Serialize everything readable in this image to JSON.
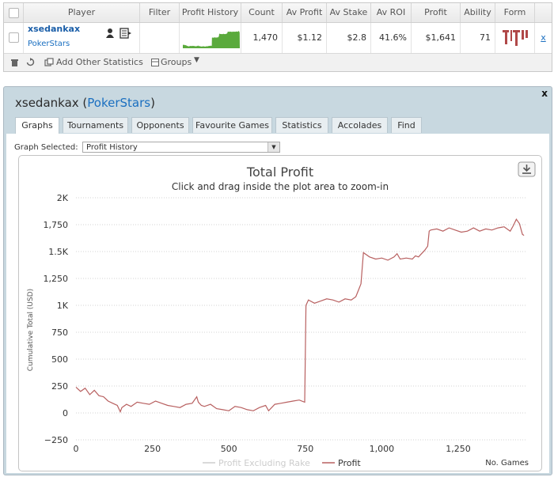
{
  "table": {
    "headers": [
      "Player",
      "Filter",
      "Profit History",
      "Count",
      "Av Profit",
      "Av Stake",
      "Av ROI",
      "Profit",
      "Ability",
      "Form"
    ],
    "row": {
      "player_name": "xsedankax",
      "site": "PokerStars",
      "count": "1,470",
      "av_profit": "$1.12",
      "av_stake": "$2.8",
      "av_roi": "41.6%",
      "profit": "$1,641",
      "ability": "71",
      "remove": "x"
    },
    "footer": {
      "add_stats_label": "Add Other Statistics",
      "groups_label": "Groups"
    }
  },
  "panel": {
    "player": "xsedankax",
    "site": "PokerStars",
    "close": "x",
    "tabs": [
      "Graphs",
      "Tournaments",
      "Opponents",
      "Favourite Games",
      "Statistics",
      "Accolades",
      "Find"
    ],
    "active_tab": "Graphs",
    "graph_selected_label": "Graph Selected:",
    "graph_selected_value": "Profit History"
  },
  "colors": {
    "profit_line": "#b86060",
    "rake_line": "#cccccc",
    "sparkline": "#5aaa3c",
    "link": "#1a6fc0"
  },
  "chart_data": {
    "type": "line",
    "title": "Total Profit",
    "subtitle": "Click and drag inside the plot area to zoom-in",
    "xlabel": "No. Games",
    "ylabel": "Cumulative Total (USD)",
    "xlim": [
      0,
      1470
    ],
    "ylim": [
      -250,
      2000
    ],
    "y_ticks": [
      -250,
      0,
      250,
      500,
      750,
      1000,
      1250,
      1500,
      1750,
      2000
    ],
    "y_tick_labels": [
      "−250",
      "0",
      "250",
      "500",
      "750",
      "1K",
      "1,250",
      "1.5K",
      "1,750",
      "2K"
    ],
    "x_ticks": [
      0,
      250,
      500,
      750,
      1000,
      1250
    ],
    "x_tick_labels": [
      "0",
      "250",
      "500",
      "750",
      "1,000",
      "1,250"
    ],
    "legend": [
      "Profit Excluding Rake",
      "Profit"
    ],
    "series": [
      {
        "name": "Profit",
        "x": [
          0,
          15,
          30,
          45,
          60,
          75,
          90,
          105,
          120,
          135,
          145,
          150,
          165,
          180,
          200,
          220,
          240,
          260,
          280,
          300,
          320,
          340,
          360,
          380,
          395,
          400,
          410,
          420,
          440,
          460,
          480,
          500,
          520,
          540,
          560,
          580,
          600,
          620,
          630,
          650,
          670,
          690,
          710,
          730,
          748,
          752,
          760,
          780,
          800,
          820,
          840,
          860,
          880,
          900,
          915,
          925,
          932,
          940,
          960,
          980,
          1000,
          1020,
          1040,
          1050,
          1060,
          1080,
          1100,
          1110,
          1120,
          1130,
          1140,
          1150,
          1155,
          1160,
          1180,
          1200,
          1220,
          1240,
          1260,
          1280,
          1300,
          1320,
          1340,
          1360,
          1380,
          1400,
          1420,
          1430,
          1440,
          1450,
          1460,
          1465
        ],
        "y": [
          240,
          200,
          230,
          170,
          210,
          160,
          150,
          110,
          90,
          70,
          10,
          50,
          80,
          60,
          100,
          90,
          80,
          110,
          90,
          70,
          60,
          50,
          80,
          90,
          150,
          100,
          70,
          60,
          80,
          40,
          30,
          20,
          60,
          50,
          30,
          20,
          50,
          70,
          20,
          80,
          90,
          100,
          110,
          120,
          100,
          1000,
          1050,
          1020,
          1040,
          1060,
          1050,
          1030,
          1060,
          1050,
          1080,
          1150,
          1200,
          1490,
          1450,
          1430,
          1440,
          1420,
          1450,
          1480,
          1430,
          1440,
          1430,
          1460,
          1450,
          1480,
          1510,
          1550,
          1690,
          1700,
          1710,
          1690,
          1720,
          1700,
          1680,
          1690,
          1720,
          1690,
          1710,
          1700,
          1720,
          1730,
          1690,
          1740,
          1800,
          1760,
          1660,
          1650
        ]
      },
      {
        "name": "Profit Excluding Rake",
        "x": [],
        "y": []
      }
    ]
  }
}
